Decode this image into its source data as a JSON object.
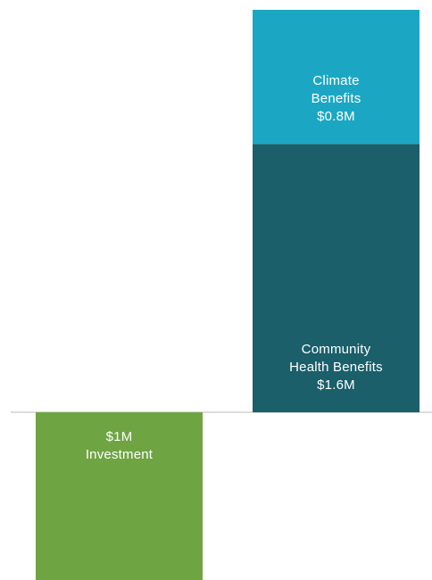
{
  "chart_data": {
    "type": "bar",
    "stacked": true,
    "categories": [
      null,
      null
    ],
    "series": [
      {
        "name": "Investment",
        "color": "#6ea442",
        "values": [
          -1,
          null
        ],
        "value_labels": [
          "$1M",
          null
        ]
      },
      {
        "name": "Community Health Benefits",
        "color": "#1a5f6a",
        "values": [
          null,
          1.6
        ],
        "value_labels": [
          null,
          "$1.6M"
        ]
      },
      {
        "name": "Climate Benefits",
        "color": "#1ba7c4",
        "values": [
          null,
          0.8
        ],
        "value_labels": [
          null,
          "$0.8M"
        ]
      }
    ],
    "ylim": [
      -1,
      2.4
    ],
    "grid": false
  }
}
